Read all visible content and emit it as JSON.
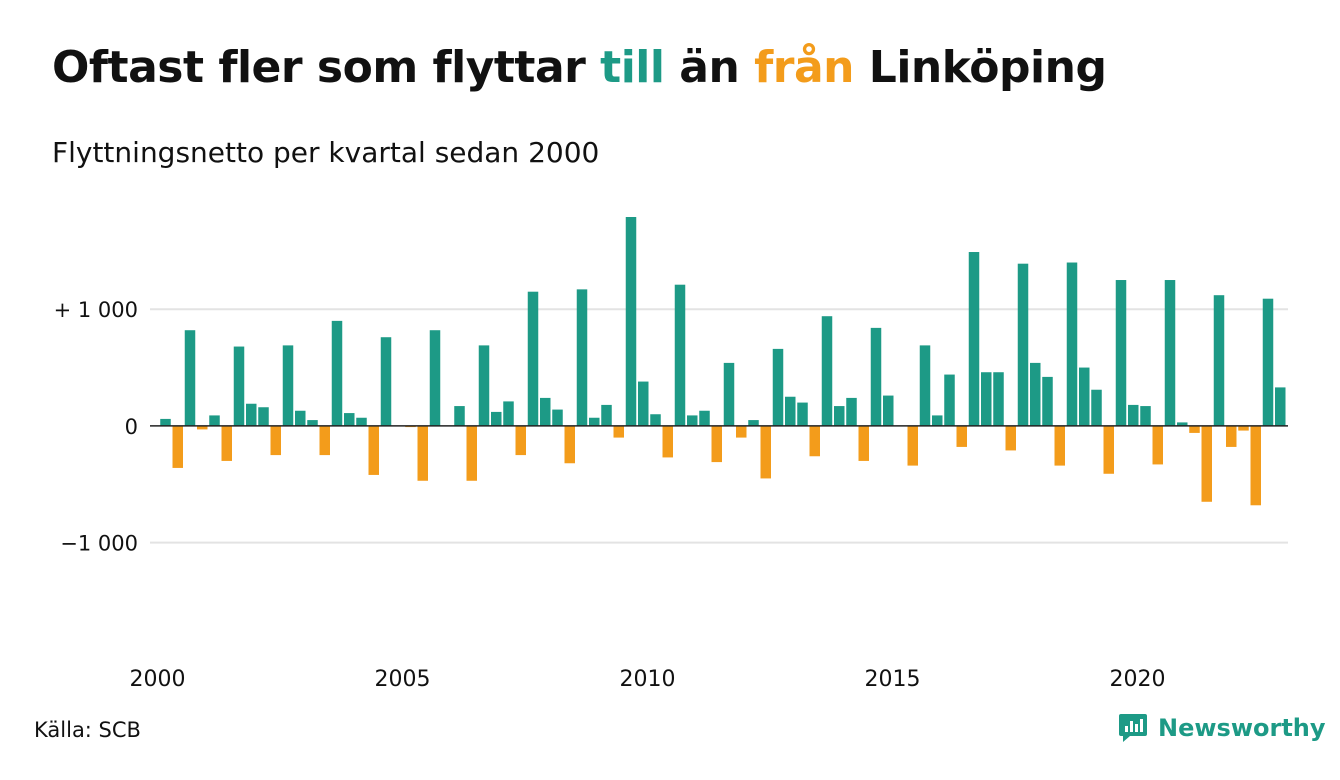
{
  "header": {
    "title_parts": {
      "p1": "Oftast fler som flyttar ",
      "p2": "till",
      "p3": " än ",
      "p4": "från",
      "p5": " Linköping"
    },
    "subtitle": "Flyttningsnetto per kvartal sedan 2000"
  },
  "footer": {
    "source": "Källa: SCB",
    "brand": "Newsworthy",
    "brand_icon": "newsworthy-logo-icon"
  },
  "colors": {
    "positive": "#1d9a86",
    "negative": "#f39c1b",
    "gridline": "#e3e3e3",
    "baseline": "#222222",
    "text": "#111111"
  },
  "chart_data": {
    "type": "bar",
    "title": "Oftast fler som flyttar till än från Linköping",
    "subtitle": "Flyttningsnetto per kvartal sedan 2000",
    "x_start": "2000 Q1",
    "x_tick_labels": [
      "2000",
      "2005",
      "2010",
      "2015",
      "2020"
    ],
    "y_ticks": [
      {
        "value": 1000,
        "label": "+ 1 000"
      },
      {
        "value": 0,
        "label": "0"
      },
      {
        "value": -1000,
        "label": "−1 000"
      }
    ],
    "ylim": [
      -1920,
      1850
    ],
    "grid": true,
    "legend": "none",
    "values": [
      60,
      -360,
      820,
      -30,
      90,
      -300,
      680,
      190,
      160,
      -250,
      690,
      130,
      50,
      -250,
      900,
      110,
      70,
      -420,
      760,
      0,
      -10,
      -470,
      820,
      0,
      170,
      -470,
      690,
      120,
      210,
      -250,
      1150,
      240,
      140,
      -320,
      1170,
      70,
      180,
      -100,
      1790,
      380,
      100,
      -270,
      1210,
      90,
      130,
      -310,
      540,
      -100,
      50,
      -450,
      660,
      250,
      200,
      -260,
      940,
      170,
      240,
      -300,
      840,
      260,
      0,
      -340,
      690,
      90,
      440,
      -180,
      1490,
      460,
      460,
      -210,
      1390,
      540,
      420,
      -340,
      1400,
      500,
      310,
      -410,
      1250,
      180,
      170,
      -330,
      1250,
      30,
      -60,
      -650,
      1120,
      -180,
      -40,
      -680,
      1090,
      330
    ]
  }
}
